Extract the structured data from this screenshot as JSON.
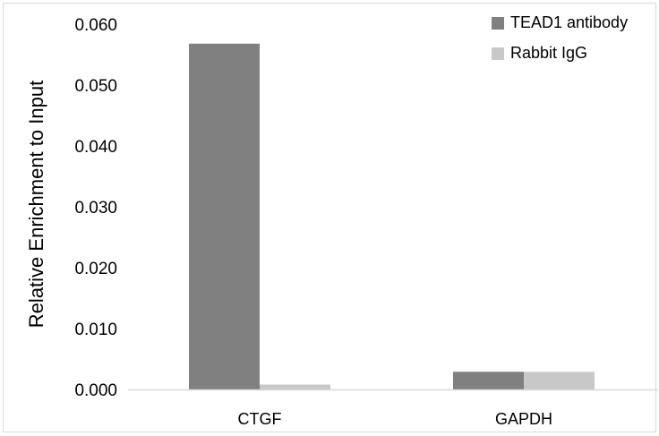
{
  "chart_data": {
    "type": "bar",
    "title": "",
    "xlabel": "",
    "ylabel": "Relative Enrichment to Input",
    "categories": [
      "CTGF",
      "GAPDH"
    ],
    "series": [
      {
        "name": "TEAD1 antibody",
        "values": [
          0.0568,
          0.0029
        ],
        "color": "#808080"
      },
      {
        "name": "Rabbit IgG",
        "values": [
          0.0008,
          0.0029
        ],
        "color": "#c8c8c8"
      }
    ],
    "ylim": [
      0,
      0.06
    ],
    "yticks": [
      0,
      0.01,
      0.02,
      0.03,
      0.04,
      0.05,
      0.06
    ],
    "ytick_labels": [
      "0.000",
      "0.010",
      "0.020",
      "0.030",
      "0.040",
      "0.050",
      "0.060"
    ],
    "grid": false,
    "legend": "top-right",
    "axis_color": "#d9d9d9"
  }
}
